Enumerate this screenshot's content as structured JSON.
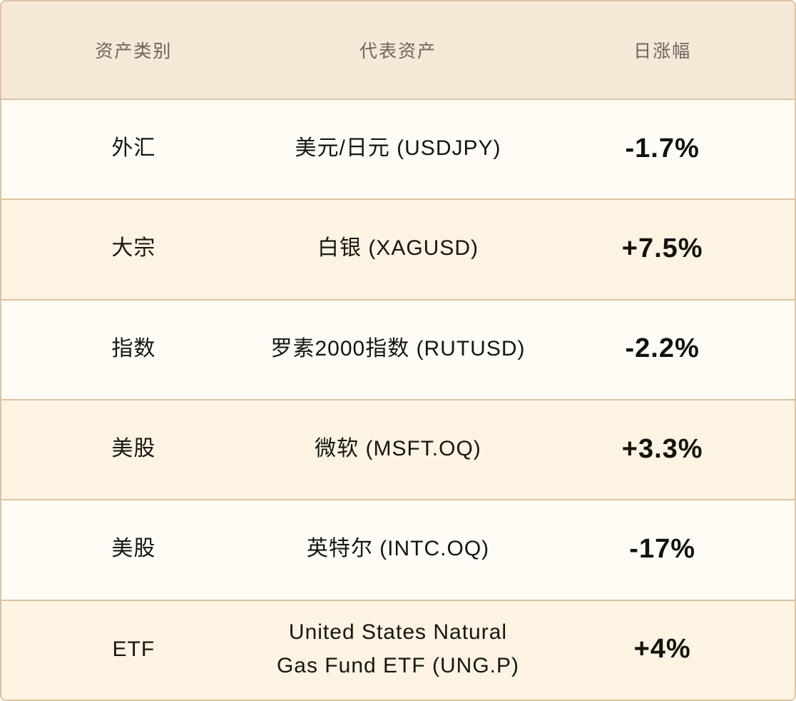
{
  "theme": {
    "header_bg": "#f5e8d7",
    "row_bg_light": "#fffcf6",
    "row_bg_cream": "#fcf3e2",
    "border_color": "#dcc3a1",
    "header_text_color": "#6b655c",
    "body_text_color": "#171511"
  },
  "table": {
    "columns": [
      {
        "label": "资产类别"
      },
      {
        "label": "代表资产"
      },
      {
        "label": "日涨幅"
      }
    ],
    "rows": [
      {
        "asset_class": "外汇",
        "asset": "美元/日元 (USDJPY)",
        "daily_change": "-1.7%"
      },
      {
        "asset_class": "大宗",
        "asset": "白银 (XAGUSD)",
        "daily_change": "+7.5%"
      },
      {
        "asset_class": "指数",
        "asset": "罗素2000指数 (RUTUSD)",
        "daily_change": "-2.2%"
      },
      {
        "asset_class": "美股",
        "asset": "微软 (MSFT.OQ)",
        "daily_change": "+3.3%"
      },
      {
        "asset_class": "美股",
        "asset": "英特尔 (INTC.OQ)",
        "daily_change": "-17%"
      },
      {
        "asset_class": "ETF",
        "asset": "United States Natural Gas Fund ETF (UNG.P)",
        "daily_change": "+4%"
      }
    ]
  },
  "chart_data": {
    "type": "table",
    "title": "",
    "columns": [
      "资产类别",
      "代表资产",
      "日涨幅"
    ],
    "rows": [
      [
        "外汇",
        "美元/日元 (USDJPY)",
        "-1.7%"
      ],
      [
        "大宗",
        "白银 (XAGUSD)",
        "+7.5%"
      ],
      [
        "指数",
        "罗素2000指数 (RUTUSD)",
        "-2.2%"
      ],
      [
        "美股",
        "微软 (MSFT.OQ)",
        "+3.3%"
      ],
      [
        "美股",
        "英特尔 (INTC.OQ)",
        "-17%"
      ],
      [
        "ETF",
        "United States Natural Gas Fund ETF (UNG.P)",
        "+4%"
      ]
    ],
    "daily_change_values_pct": [
      -1.7,
      7.5,
      -2.2,
      3.3,
      -17,
      4
    ],
    "layout": {
      "grid": "off",
      "alternating_row_stripes": true,
      "all_cells_centered": true
    }
  }
}
